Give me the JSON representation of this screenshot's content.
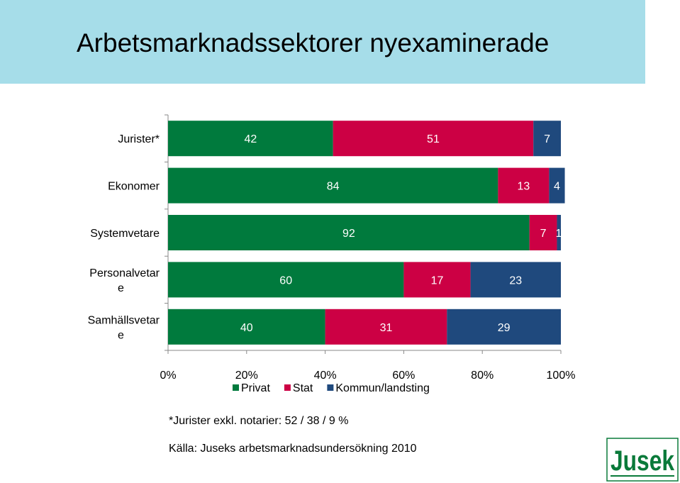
{
  "header": {
    "title": "Arbetsmarknadssektorer nyexaminerade"
  },
  "chart_data": {
    "type": "bar",
    "orientation": "horizontal",
    "stacked": "percent",
    "categories": [
      [
        "Jurister*"
      ],
      [
        "Ekonomer"
      ],
      [
        "Systemvetare"
      ],
      [
        "Personalvetar",
        "e"
      ],
      [
        "Samhällsvetar",
        "e"
      ]
    ],
    "series": [
      {
        "name": "Privat",
        "color": "#007a3d",
        "values": [
          42,
          84,
          92,
          60,
          40
        ]
      },
      {
        "name": "Stat",
        "color": "#cc0044",
        "values": [
          51,
          13,
          7,
          17,
          31
        ]
      },
      {
        "name": "Kommun/landsting",
        "color": "#1f497d",
        "values": [
          7,
          4,
          1,
          23,
          29
        ]
      }
    ],
    "xlim": [
      0,
      100
    ],
    "xticks": [
      "0%",
      "20%",
      "40%",
      "60%",
      "80%",
      "100%"
    ],
    "legend_position": "bottom",
    "grid": false
  },
  "footnote": "*Jurister exkl. notarier: 52 / 38 / 9 %",
  "source": "Källa: Juseks arbetsmarknadsundersökning 2010",
  "logo": {
    "text": "Jusek",
    "color": "#0a7a3a"
  }
}
